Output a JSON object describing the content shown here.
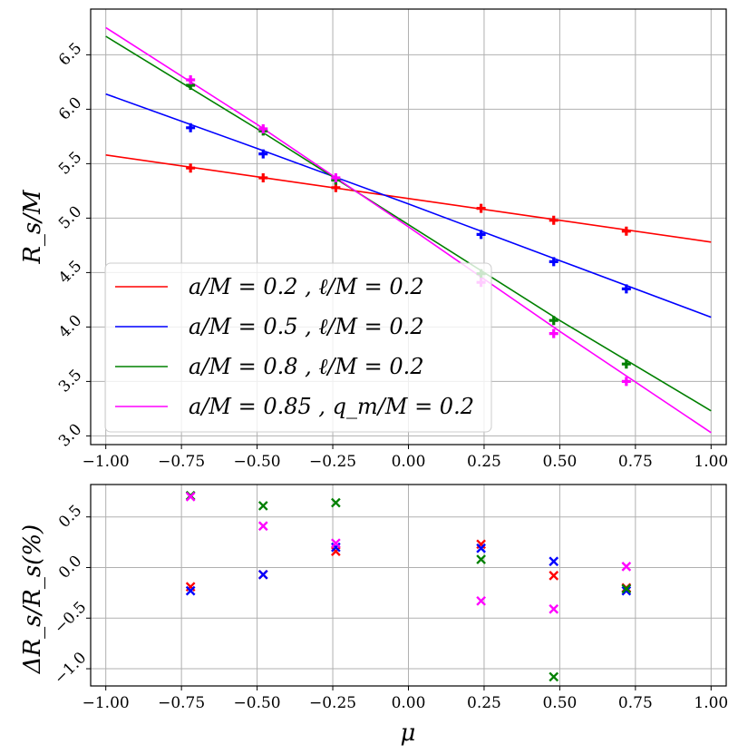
{
  "chart_data": [
    {
      "type": "line",
      "ylabel": "R_s/M",
      "xlabel": "",
      "xlim": [
        -1.05,
        1.05
      ],
      "ylim": [
        2.92,
        6.92
      ],
      "xticks": [
        "−1.00",
        "−0.75",
        "−0.50",
        "−0.25",
        "0.00",
        "0.25",
        "0.50",
        "0.75",
        "1.00"
      ],
      "xtick_values": [
        -1.0,
        -0.75,
        -0.5,
        -0.25,
        0.0,
        0.25,
        0.5,
        0.75,
        1.0
      ],
      "yticks": [
        "3.0",
        "3.5",
        "4.0",
        "4.5",
        "5.0",
        "5.5",
        "6.0",
        "6.5"
      ],
      "ytick_values": [
        3.0,
        3.5,
        4.0,
        4.5,
        5.0,
        5.5,
        6.0,
        6.5
      ],
      "grid": true,
      "legend_position": "lower-left",
      "series": [
        {
          "name": "a/M = 0.2 , ℓ/M = 0.2",
          "color": "#ff0000",
          "curve": {
            "x": [
              -1.0,
              -0.5,
              0.0,
              0.5,
              1.0
            ],
            "y": [
              5.58,
              5.38,
              5.18,
              4.98,
              4.78
            ]
          },
          "points": {
            "x": [
              -0.72,
              -0.48,
              -0.24,
              0.24,
              0.48,
              0.72
            ],
            "y": [
              5.46,
              5.37,
              5.28,
              5.09,
              4.98,
              4.88
            ]
          }
        },
        {
          "name": "a/M = 0.5 , ℓ/M = 0.2",
          "color": "#0000ff",
          "curve": {
            "x": [
              -1.0,
              -0.5,
              0.0,
              0.5,
              1.0
            ],
            "y": [
              6.14,
              5.64,
              5.13,
              4.61,
              4.09
            ]
          },
          "points": {
            "x": [
              -0.72,
              -0.48,
              -0.24,
              0.24,
              0.48,
              0.72
            ],
            "y": [
              5.83,
              5.59,
              5.35,
              4.85,
              4.6,
              4.35
            ]
          }
        },
        {
          "name": "a/M = 0.8 , ℓ/M = 0.2",
          "color": "#008000",
          "curve": {
            "x": [
              -1.0,
              -0.5,
              0.0,
              0.5,
              1.0
            ],
            "y": [
              6.67,
              5.82,
              4.94,
              4.06,
              3.23
            ]
          },
          "points": {
            "x": [
              -0.72,
              -0.48,
              -0.24,
              0.24,
              0.48,
              0.72
            ],
            "y": [
              6.22,
              5.8,
              5.35,
              4.49,
              4.06,
              3.66
            ]
          }
        },
        {
          "name": "a/M = 0.85 , q_m/M = 0.2",
          "color": "#ff00ff",
          "curve": {
            "x": [
              -1.0,
              -0.5,
              0.0,
              0.5,
              1.0
            ],
            "y": [
              6.75,
              5.86,
              4.92,
              3.96,
              3.03
            ]
          },
          "points": {
            "x": [
              -0.72,
              -0.48,
              -0.24,
              0.24,
              0.48,
              0.72
            ],
            "y": [
              6.27,
              5.82,
              5.37,
              4.41,
              3.94,
              3.5
            ]
          }
        }
      ]
    },
    {
      "type": "scatter",
      "ylabel": "ΔR_s/R_s(%)",
      "xlabel": "μ",
      "xlim": [
        -1.05,
        1.05
      ],
      "ylim": [
        -1.17,
        0.82
      ],
      "xticks": [
        "−1.00",
        "−0.75",
        "−0.50",
        "−0.25",
        "0.00",
        "0.25",
        "0.50",
        "0.75",
        "1.00"
      ],
      "xtick_values": [
        -1.0,
        -0.75,
        -0.5,
        -0.25,
        0.0,
        0.25,
        0.5,
        0.75,
        1.0
      ],
      "yticks": [
        "−1.0",
        "−0.5",
        "0.0",
        "0.5"
      ],
      "ytick_values": [
        -1.0,
        -0.5,
        0.0,
        0.5
      ],
      "grid": true,
      "series": [
        {
          "name": "a/M = 0.2 , ℓ/M = 0.2",
          "color": "#ff0000",
          "x": [
            -0.72,
            -0.48,
            -0.24,
            0.24,
            0.48,
            0.72
          ],
          "y": [
            -0.19,
            -0.07,
            0.16,
            0.23,
            -0.08,
            -0.2
          ]
        },
        {
          "name": "a/M = 0.5 , ℓ/M = 0.2",
          "color": "#0000ff",
          "x": [
            -0.72,
            -0.48,
            -0.24,
            0.24,
            0.48,
            0.72
          ],
          "y": [
            -0.23,
            -0.07,
            0.2,
            0.19,
            0.06,
            -0.23
          ]
        },
        {
          "name": "a/M = 0.8 , ℓ/M = 0.2",
          "color": "#008000",
          "x": [
            -0.72,
            -0.48,
            -0.24,
            0.24,
            0.48,
            0.72
          ],
          "y": [
            0.71,
            0.61,
            0.64,
            0.08,
            -1.08,
            -0.21
          ]
        },
        {
          "name": "a/M = 0.85 , q_m/M = 0.2",
          "color": "#ff00ff",
          "x": [
            -0.72,
            -0.48,
            -0.24,
            0.24,
            0.48,
            0.72
          ],
          "y": [
            0.7,
            0.41,
            0.24,
            -0.33,
            -0.41,
            0.01
          ]
        }
      ]
    }
  ]
}
